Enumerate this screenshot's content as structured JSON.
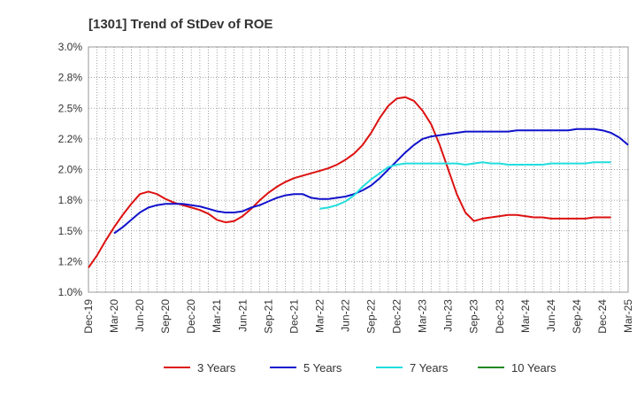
{
  "chart_data": {
    "type": "line",
    "title": "[1301]  Trend of StDev of ROE",
    "ylim": [
      1.0,
      3.0
    ],
    "y_tick_values": [
      1.0,
      1.25,
      1.5,
      1.75,
      2.0,
      2.25,
      2.5,
      2.75,
      3.0
    ],
    "y_tick_labels": [
      "1.0%",
      "1.2%",
      "1.5%",
      "1.8%",
      "2.0%",
      "2.2%",
      "2.5%",
      "2.8%",
      "3.0%"
    ],
    "x_tick_labels": [
      "Dec-19",
      "Mar-20",
      "Jun-20",
      "Sep-20",
      "Dec-20",
      "Mar-21",
      "Jun-21",
      "Sep-21",
      "Dec-21",
      "Mar-22",
      "Jun-22",
      "Sep-22",
      "Dec-22",
      "Mar-23",
      "Jun-23",
      "Sep-23",
      "Dec-23",
      "Mar-24",
      "Jun-24",
      "Sep-24",
      "Dec-24",
      "Mar-25"
    ],
    "grid": true,
    "legend_position": "bottom",
    "series": [
      {
        "name": "3 Years",
        "color": "#dd1111",
        "start_index": 0,
        "values": [
          1.2,
          1.3,
          1.42,
          1.53,
          1.63,
          1.72,
          1.8,
          1.82,
          1.8,
          1.76,
          1.73,
          1.71,
          1.69,
          1.67,
          1.64,
          1.59,
          1.57,
          1.58,
          1.62,
          1.68,
          1.75,
          1.81,
          1.86,
          1.9,
          1.93,
          1.95,
          1.97,
          1.99,
          2.01,
          2.04,
          2.08,
          2.13,
          2.2,
          2.3,
          2.42,
          2.52,
          2.58,
          2.59,
          2.56,
          2.48,
          2.37,
          2.2,
          2.0,
          1.8,
          1.65,
          1.58,
          1.6,
          1.61,
          1.62,
          1.63,
          1.63,
          1.62,
          1.61,
          1.61,
          1.6,
          1.6,
          1.6,
          1.6,
          1.6,
          1.61,
          1.61,
          1.61
        ]
      },
      {
        "name": "5 Years",
        "color": "#1111cc",
        "start_index": 3,
        "values": [
          1.48,
          1.53,
          1.59,
          1.65,
          1.69,
          1.71,
          1.72,
          1.72,
          1.72,
          1.71,
          1.7,
          1.68,
          1.66,
          1.65,
          1.65,
          1.66,
          1.69,
          1.71,
          1.74,
          1.77,
          1.79,
          1.8,
          1.8,
          1.77,
          1.76,
          1.76,
          1.77,
          1.78,
          1.8,
          1.83,
          1.87,
          1.93,
          2.0,
          2.07,
          2.14,
          2.2,
          2.25,
          2.27,
          2.28,
          2.29,
          2.3,
          2.31,
          2.31,
          2.31,
          2.31,
          2.31,
          2.31,
          2.32,
          2.32,
          2.32,
          2.32,
          2.32,
          2.32,
          2.32,
          2.33,
          2.33,
          2.33,
          2.32,
          2.3,
          2.26,
          2.2
        ]
      },
      {
        "name": "7 Years",
        "color": "#22dddd",
        "start_index": 27,
        "values": [
          1.68,
          1.69,
          1.71,
          1.74,
          1.79,
          1.86,
          1.92,
          1.97,
          2.02,
          2.04,
          2.05,
          2.05,
          2.05,
          2.05,
          2.05,
          2.05,
          2.05,
          2.04,
          2.05,
          2.06,
          2.05,
          2.05,
          2.04,
          2.04,
          2.04,
          2.04,
          2.04,
          2.05,
          2.05,
          2.05,
          2.05,
          2.05,
          2.06,
          2.06,
          2.06
        ]
      },
      {
        "name": "10 Years",
        "color": "#228822",
        "start_index": 0,
        "values": []
      }
    ]
  }
}
